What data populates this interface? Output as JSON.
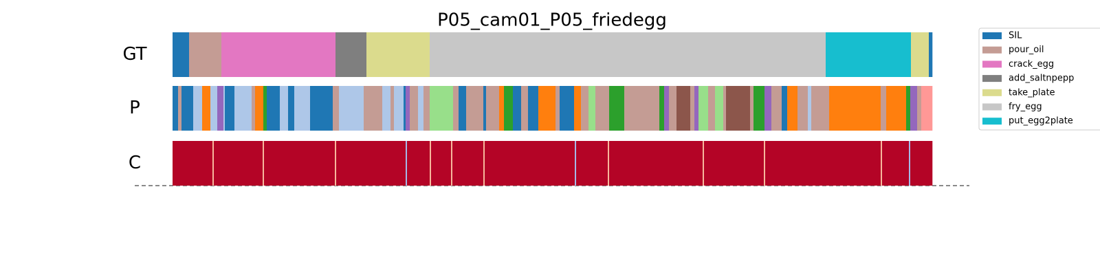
{
  "chart_data": {
    "type": "segmentation",
    "title": "P05_cam01_P05_friedegg",
    "legend": [
      {
        "name": "SIL",
        "color": "#1f77b4"
      },
      {
        "name": "pour_oil",
        "color": "#c49c94"
      },
      {
        "name": "crack_egg",
        "color": "#e377c2"
      },
      {
        "name": "add_saltnpepp",
        "color": "#7f7f7f"
      },
      {
        "name": "take_plate",
        "color": "#dbdb8d"
      },
      {
        "name": "fry_egg",
        "color": "#c7c7c7"
      },
      {
        "name": "put_egg2plate",
        "color": "#17becf"
      }
    ],
    "rows": [
      {
        "label": "GT",
        "edges": [
          0,
          24,
          71,
          237,
          282,
          374,
          950,
          1074,
          1100,
          1105
        ],
        "colors": [
          "#1f77b4",
          "#c49c94",
          "#e377c2",
          "#7f7f7f",
          "#dbdb8d",
          "#c7c7c7",
          "#17becf",
          "#dbdb8d",
          "#1f77b4"
        ]
      },
      {
        "label": "P",
        "edges": [
          0,
          8,
          13,
          30,
          43,
          55,
          65,
          74,
          76,
          90,
          95,
          115,
          120,
          132,
          137,
          141,
          156,
          168,
          177,
          200,
          233,
          242,
          278,
          305,
          317,
          322,
          336,
          339,
          345,
          357,
          365,
          374,
          390,
          408,
          416,
          427,
          452,
          456,
          475,
          482,
          495,
          507,
          517,
          532,
          557,
          563,
          584,
          594,
          605,
          615,
          635,
          657,
          708,
          715,
          722,
          733,
          753,
          759,
          765,
          779,
          789,
          801,
          805,
          840,
          845,
          861,
          871,
          886,
          894,
          909,
          924,
          929,
          955,
          1030,
          1038,
          1067,
          1073,
          1083,
          1089,
          1105
        ],
        "colors": [
          "#1f77b4",
          "#c49c94",
          "#1f77b4",
          "#aec7e8",
          "#ff7f0e",
          "#aec7e8",
          "#9467bd",
          "#aec7e8",
          "#1f77b4",
          "#aec7e8",
          "#aec7e8",
          "#c49c94",
          "#ff7f0e",
          "#2ca02c",
          "#1f77b4",
          "#1f77b4",
          "#aec7e8",
          "#1f77b4",
          "#aec7e8",
          "#1f77b4",
          "#c49c94",
          "#aec7e8",
          "#c49c94",
          "#aec7e8",
          "#c49c94",
          "#aec7e8",
          "#1f77b4",
          "#9467bd",
          "#c49c94",
          "#aec7e8",
          "#c49c94",
          "#98df8a",
          "#98df8a",
          "#c49c94",
          "#1f77b4",
          "#c49c94",
          "#1f77b4",
          "#c49c94",
          "#ff7f0e",
          "#2ca02c",
          "#1f77b4",
          "#c49c94",
          "#1f77b4",
          "#ff7f0e",
          "#c49c94",
          "#1f77b4",
          "#ff7f0e",
          "#c49c94",
          "#98df8a",
          "#c49c94",
          "#2ca02c",
          "#c49c94",
          "#2ca02c",
          "#9467bd",
          "#c49c94",
          "#8c564b",
          "#c49c94",
          "#9467bd",
          "#98df8a",
          "#c49c94",
          "#98df8a",
          "#c49c94",
          "#8c564b",
          "#c49c94",
          "#2ca02c",
          "#9467bd",
          "#c49c94",
          "#1f77b4",
          "#ff7f0e",
          "#c49c94",
          "#aec7e8",
          "#c49c94",
          "#ff7f0e",
          "#c49c94",
          "#ff7f0e",
          "#2ca02c",
          "#9467bd",
          "#c49c94",
          "#ff9896"
        ]
      },
      {
        "label": "C",
        "edges": [
          0,
          58,
          60,
          131,
          133,
          236,
          238,
          339,
          341,
          374,
          376,
          405,
          407,
          452,
          454,
          585,
          587,
          633,
          635,
          771,
          773,
          860,
          862,
          1030,
          1032,
          1071,
          1073,
          1105
        ],
        "colors": [
          "#b40426",
          "#f7b89c",
          "#b40426",
          "#f7b89c",
          "#b40426",
          "#f7b89c",
          "#b40426",
          "#a5b9e8",
          "#b40426",
          "#f7b89c",
          "#b40426",
          "#f7b89c",
          "#b40426",
          "#f7b89c",
          "#b40426",
          "#a5b9e8",
          "#b40426",
          "#f7b89c",
          "#b40426",
          "#f7b89c",
          "#b40426",
          "#f7b89c",
          "#b40426",
          "#f7b89c",
          "#b40426",
          "#a5b9e8",
          "#b40426"
        ]
      }
    ]
  }
}
